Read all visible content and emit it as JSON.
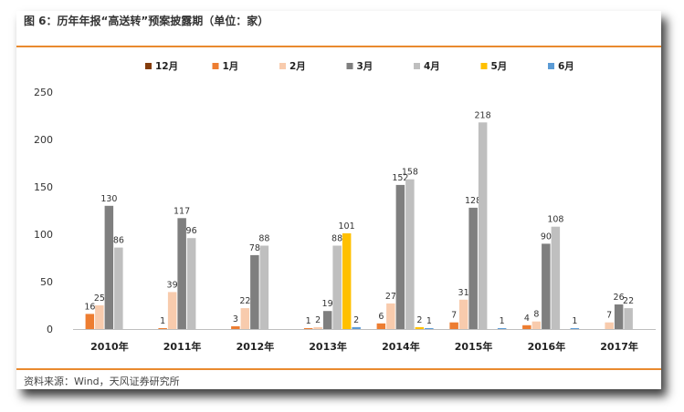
{
  "title": "图 6：历年年报“高送转”预案披露期（单位：家）",
  "source": "资料来源：Wind，天风证券研究所",
  "chart_data": {
    "type": "bar",
    "categories": [
      "2010年",
      "2011年",
      "2012年",
      "2013年",
      "2014年",
      "2015年",
      "2016年",
      "2017年"
    ],
    "ylim": [
      0,
      250
    ],
    "yticks": [
      0,
      50,
      100,
      150,
      200,
      250
    ],
    "grid": false,
    "legend_position": "top",
    "series": [
      {
        "name": "12月",
        "color": "#843c0c",
        "values": [
          null,
          null,
          null,
          null,
          null,
          null,
          null,
          null
        ]
      },
      {
        "name": "1月",
        "color": "#ed7d31",
        "values": [
          16,
          1,
          3,
          1,
          6,
          7,
          4,
          null
        ]
      },
      {
        "name": "2月",
        "color": "#f8cbad",
        "values": [
          25,
          39,
          22,
          2,
          27,
          31,
          8,
          7
        ]
      },
      {
        "name": "3月",
        "color": "#7f7f7f",
        "values": [
          130,
          117,
          78,
          19,
          152,
          128,
          90,
          26
        ]
      },
      {
        "name": "4月",
        "color": "#bfbfbf",
        "values": [
          86,
          96,
          88,
          88,
          158,
          218,
          108,
          22
        ]
      },
      {
        "name": "5月",
        "color": "#ffc000",
        "values": [
          null,
          null,
          null,
          101,
          2,
          null,
          null,
          null
        ]
      },
      {
        "name": "6月",
        "color": "#5b9bd5",
        "values": [
          null,
          null,
          null,
          2,
          1,
          1,
          1,
          null
        ]
      }
    ]
  }
}
